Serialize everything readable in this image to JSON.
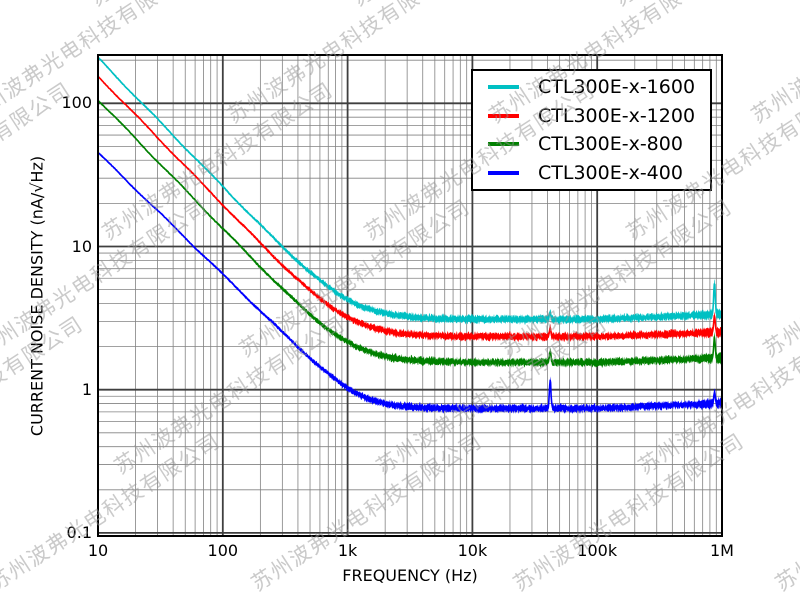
{
  "figure": {
    "background": "#ffffff",
    "frame_color": "#000000",
    "grid": {
      "major_color": "#3f3f3f",
      "minor_color": "#828282"
    }
  },
  "watermark": {
    "text": "苏州波弗光电科技有限公司",
    "color_rgba": "rgba(150,150,150,0.5)",
    "angle_deg": -33
  },
  "chart_data": {
    "type": "line",
    "xscale": "log",
    "yscale": "log",
    "title": "",
    "xlabel": "FREQUENCY (Hz)",
    "ylabel": "CURRENT NOISE DENSITY (nA/√Hz)",
    "xlim": [
      10,
      1000000
    ],
    "ylim": [
      0.095,
      215
    ],
    "grid": "major+minor",
    "legend_position": "upper right",
    "xticks": [
      {
        "value": 10,
        "label": "10"
      },
      {
        "value": 100,
        "label": "100"
      },
      {
        "value": 1000,
        "label": "1k"
      },
      {
        "value": 10000,
        "label": "10k"
      },
      {
        "value": 100000,
        "label": "100k"
      },
      {
        "value": 1000000,
        "label": "1M"
      }
    ],
    "yticks": [
      {
        "value": 100,
        "label": "100"
      },
      {
        "value": 10,
        "label": "10"
      },
      {
        "value": 1,
        "label": "1"
      },
      {
        "value": 0.1,
        "label": "0.1"
      }
    ],
    "series": [
      {
        "name": "CTL300E-x-1600",
        "color": "#00c0c3",
        "noise_floor_nA": 3.1,
        "points_f_nA": [
          [
            10,
            208
          ],
          [
            30,
            78
          ],
          [
            100,
            27
          ],
          [
            300,
            10.5
          ],
          [
            1000,
            4.3
          ],
          [
            3000,
            3.3
          ],
          [
            10000,
            3.1
          ],
          [
            42000,
            3.5
          ],
          [
            100000,
            3.1
          ],
          [
            300000,
            3.15
          ],
          [
            870000,
            5.6
          ],
          [
            1000000,
            3.4
          ]
        ],
        "spikes": [
          {
            "f": 42000,
            "peak": 3.5
          },
          {
            "f": 870000,
            "peak": 5.6
          }
        ],
        "model": {
          "A": 1650,
          "alpha": 0.9,
          "floor": 3.1,
          "p": 2.4,
          "hf_rise": 0.035
        }
      },
      {
        "name": "CTL300E-x-1200",
        "color": "#ff0000",
        "noise_floor_nA": 2.35,
        "points_f_nA": [
          [
            10,
            155
          ],
          [
            100,
            20
          ],
          [
            1000,
            3.2
          ],
          [
            3000,
            2.5
          ],
          [
            10000,
            2.35
          ],
          [
            42000,
            2.7
          ],
          [
            100000,
            2.35
          ],
          [
            870000,
            3.25
          ],
          [
            1000000,
            2.5
          ]
        ],
        "spikes": [
          {
            "f": 42000,
            "peak": 2.7
          },
          {
            "f": 870000,
            "peak": 3.25
          }
        ],
        "model": {
          "A": 1230,
          "alpha": 0.9,
          "floor": 2.35,
          "p": 2.4,
          "hf_rise": 0.03
        }
      },
      {
        "name": "CTL300E-x-800",
        "color": "#008000",
        "noise_floor_nA": 1.55,
        "points_f_nA": [
          [
            10,
            106
          ],
          [
            100,
            13.5
          ],
          [
            1000,
            2.15
          ],
          [
            3000,
            1.65
          ],
          [
            10000,
            1.55
          ],
          [
            42000,
            1.85
          ],
          [
            100000,
            1.55
          ],
          [
            870000,
            2.3
          ],
          [
            1000000,
            1.65
          ]
        ],
        "spikes": [
          {
            "f": 42000,
            "peak": 1.85
          },
          {
            "f": 870000,
            "peak": 2.3
          }
        ],
        "model": {
          "A": 840,
          "alpha": 0.9,
          "floor": 1.55,
          "p": 2.4,
          "hf_rise": 0.03
        }
      },
      {
        "name": "CTL300E-x-400",
        "color": "#0000ff",
        "noise_floor_nA": 0.74,
        "points_f_nA": [
          [
            10,
            47
          ],
          [
            100,
            6.6
          ],
          [
            1000,
            1.0
          ],
          [
            3000,
            0.8
          ],
          [
            10000,
            0.75
          ],
          [
            42000,
            1.18
          ],
          [
            100000,
            0.74
          ],
          [
            1000000,
            0.8
          ]
        ],
        "spikes": [
          {
            "f": 42000,
            "peak": 1.18
          },
          {
            "f": 870000,
            "peak": 0.95
          }
        ],
        "model": {
          "A": 320,
          "alpha": 0.85,
          "floor": 0.74,
          "p": 3.2,
          "hf_rise": 0.035
        }
      }
    ]
  }
}
